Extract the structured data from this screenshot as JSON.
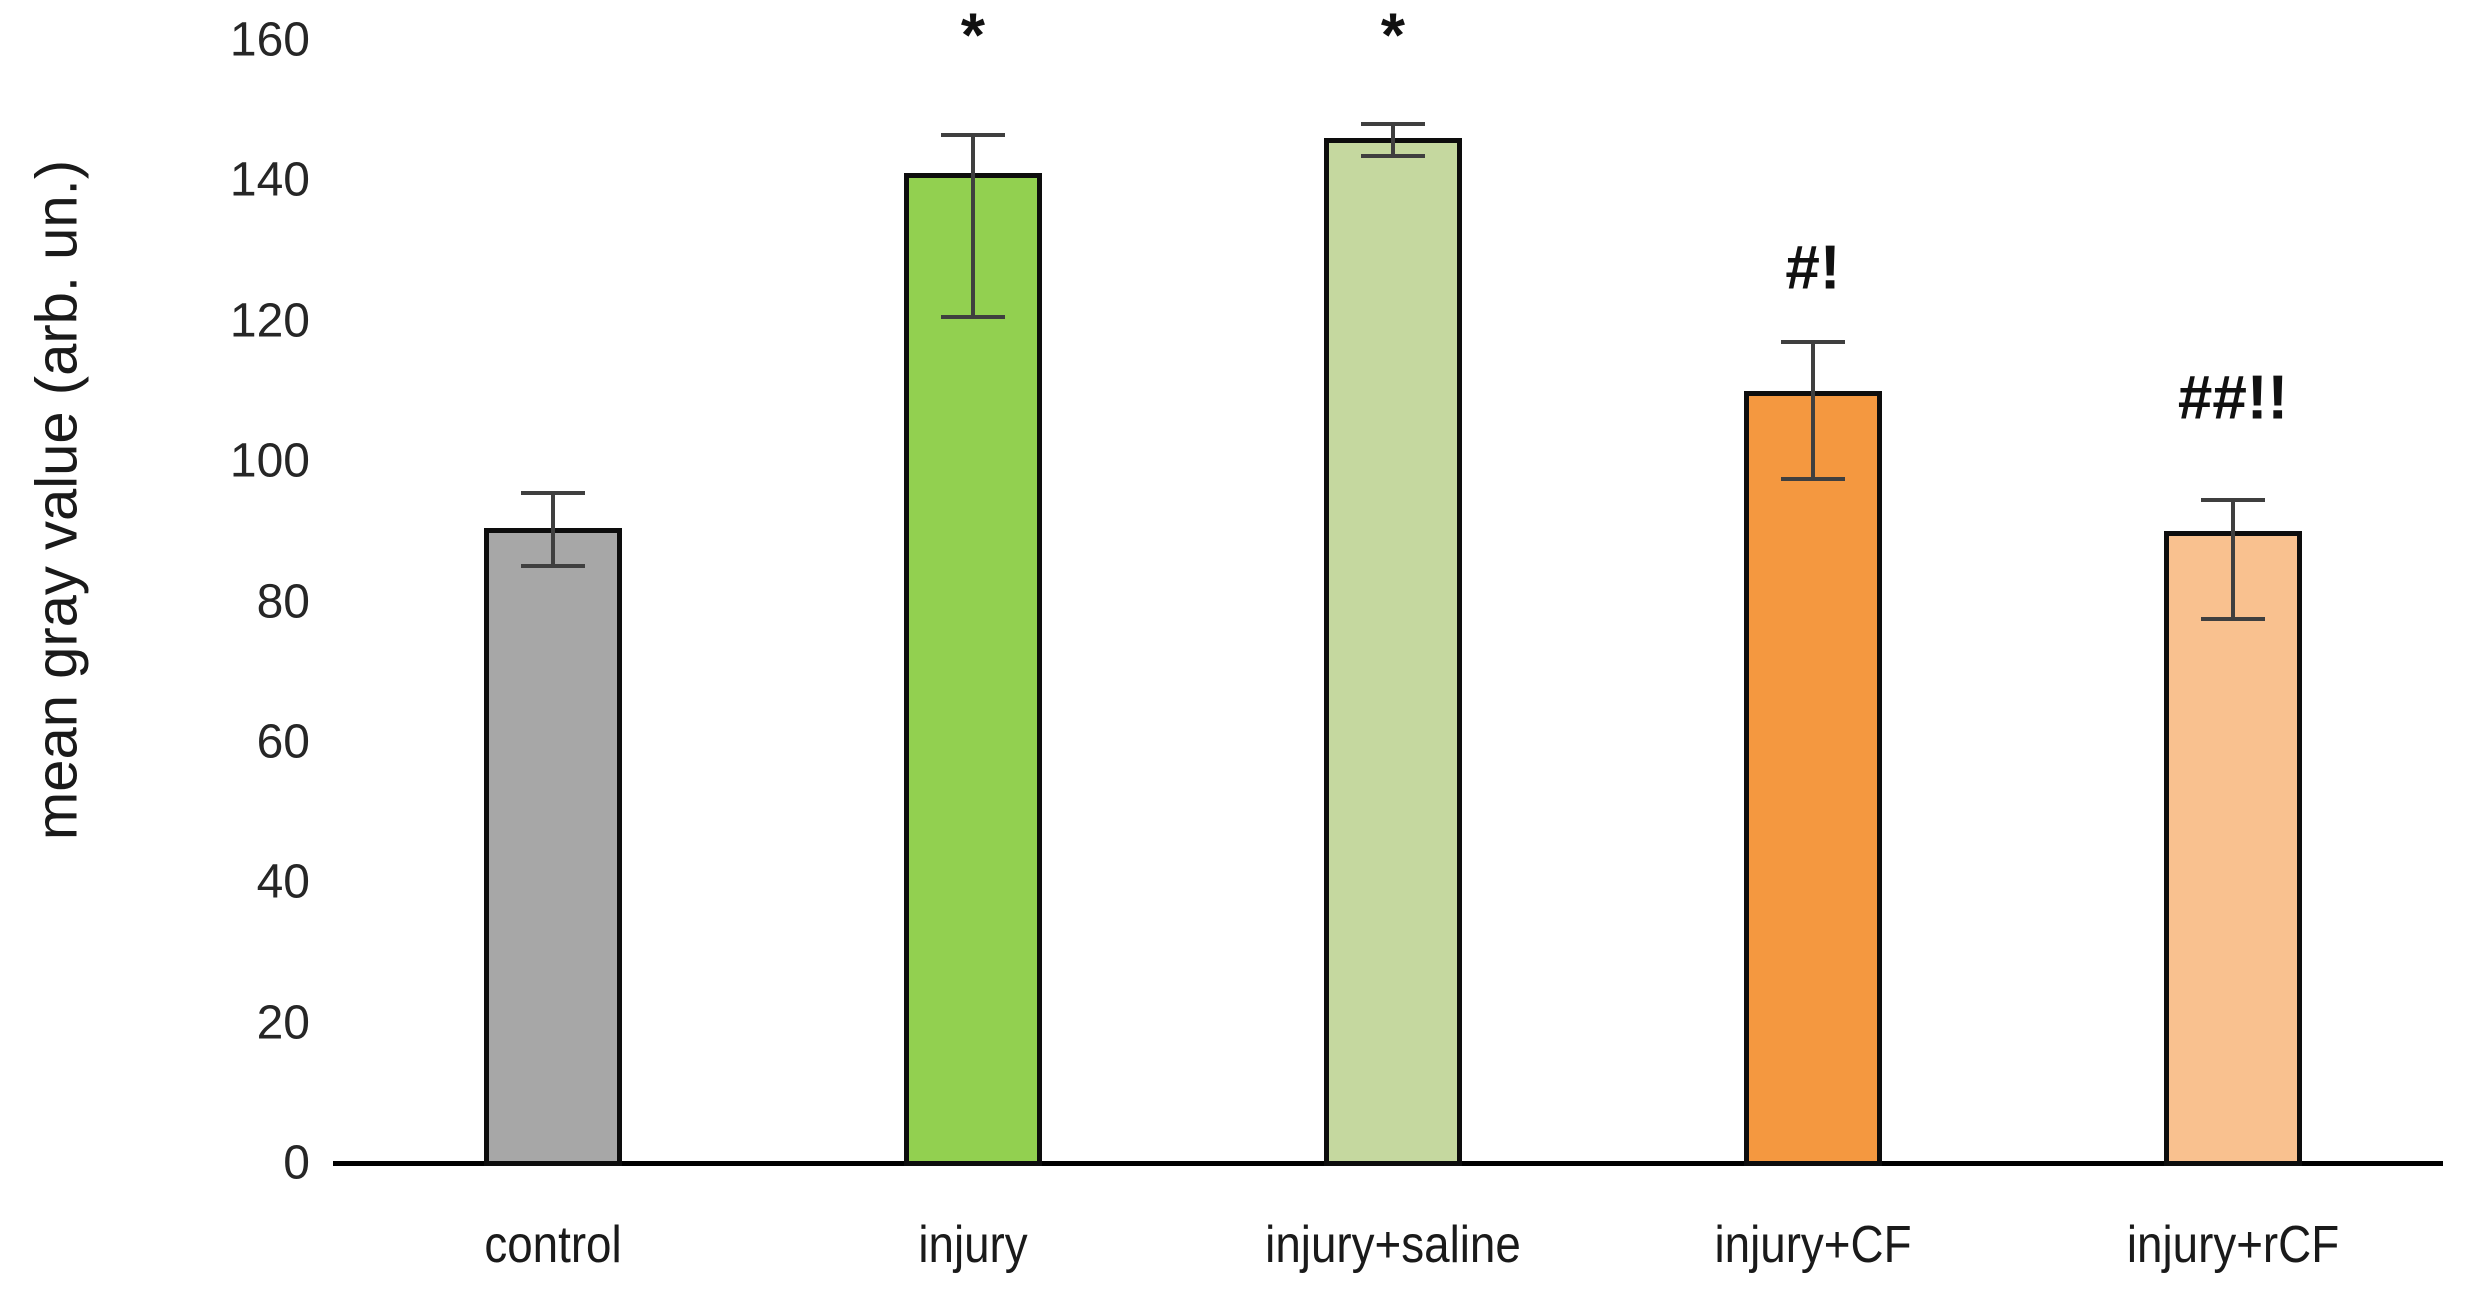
{
  "chart_data": {
    "type": "bar",
    "title": "",
    "xlabel": "",
    "ylabel": "mean gray value (arb. un.)",
    "categories": [
      "control",
      "injury",
      "injury+saline",
      "injury+CF",
      "injury+rCF"
    ],
    "values": [
      90.5,
      141,
      146,
      110,
      90
    ],
    "error_plus": [
      5,
      5.5,
      2,
      7,
      4.5
    ],
    "error_minus": [
      5.5,
      20.5,
      2.5,
      12.5,
      12.5
    ],
    "significance_labels": [
      "",
      "*",
      "*",
      "#!",
      "##!!"
    ],
    "significance_label_y": [
      null,
      160.5,
      160.5,
      127.5,
      109
    ],
    "bar_colors": [
      "#a7a7a7",
      "#92d050",
      "#c5d89f",
      "#f49840",
      "#f9c18f"
    ],
    "bar_border_color": "#0d0d0d",
    "error_bar_color": "#3f3f3f",
    "axis_color": "#000000",
    "y_ticks": [
      0,
      20,
      40,
      60,
      80,
      100,
      120,
      140,
      160
    ],
    "ylim": [
      0,
      160
    ],
    "grid": false,
    "legend": false
  }
}
